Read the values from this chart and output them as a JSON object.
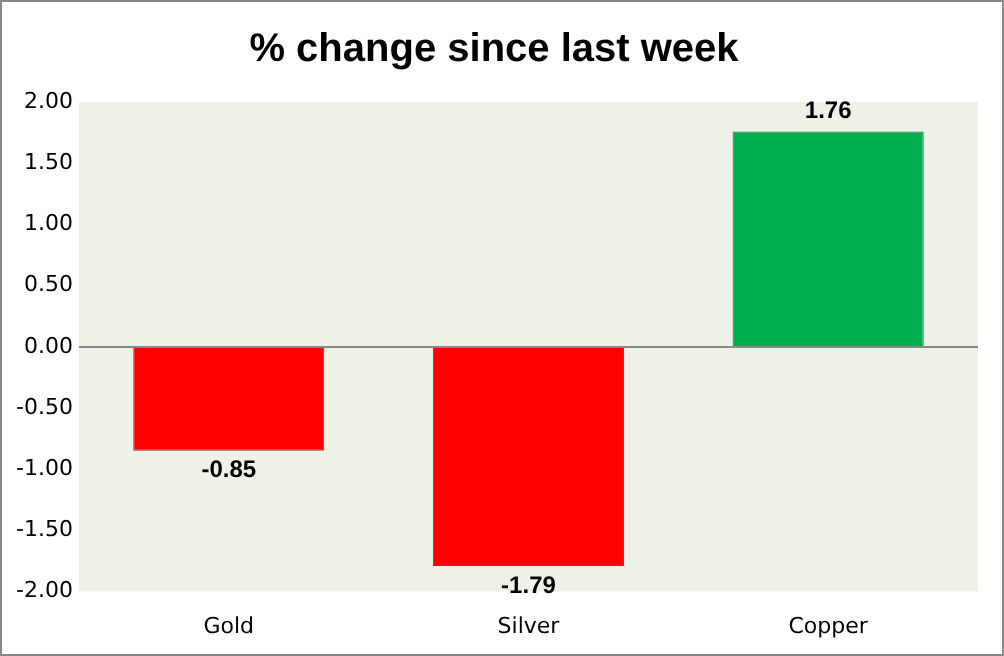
{
  "chart_data": {
    "type": "bar",
    "title": "% change since last week",
    "categories": [
      "Gold",
      "Silver",
      "Copper"
    ],
    "values": [
      -0.85,
      -1.79,
      1.76
    ],
    "colors": [
      "#ff0000",
      "#ff0000",
      "#00b050"
    ],
    "ylim": [
      -2,
      2
    ],
    "yticks": [
      {
        "value": -2,
        "label": "-2.00"
      },
      {
        "value": -1.5,
        "label": "-1.50"
      },
      {
        "value": -1,
        "label": "-1.00"
      },
      {
        "value": -0.5,
        "label": "-0.50"
      },
      {
        "value": 0,
        "label": "0.00"
      },
      {
        "value": 0.5,
        "label": "0.50"
      },
      {
        "value": 1,
        "label": "1.00"
      },
      {
        "value": 1.5,
        "label": "1.50"
      },
      {
        "value": 2,
        "label": "2.00"
      }
    ],
    "data_labels": true,
    "legend": false
  }
}
